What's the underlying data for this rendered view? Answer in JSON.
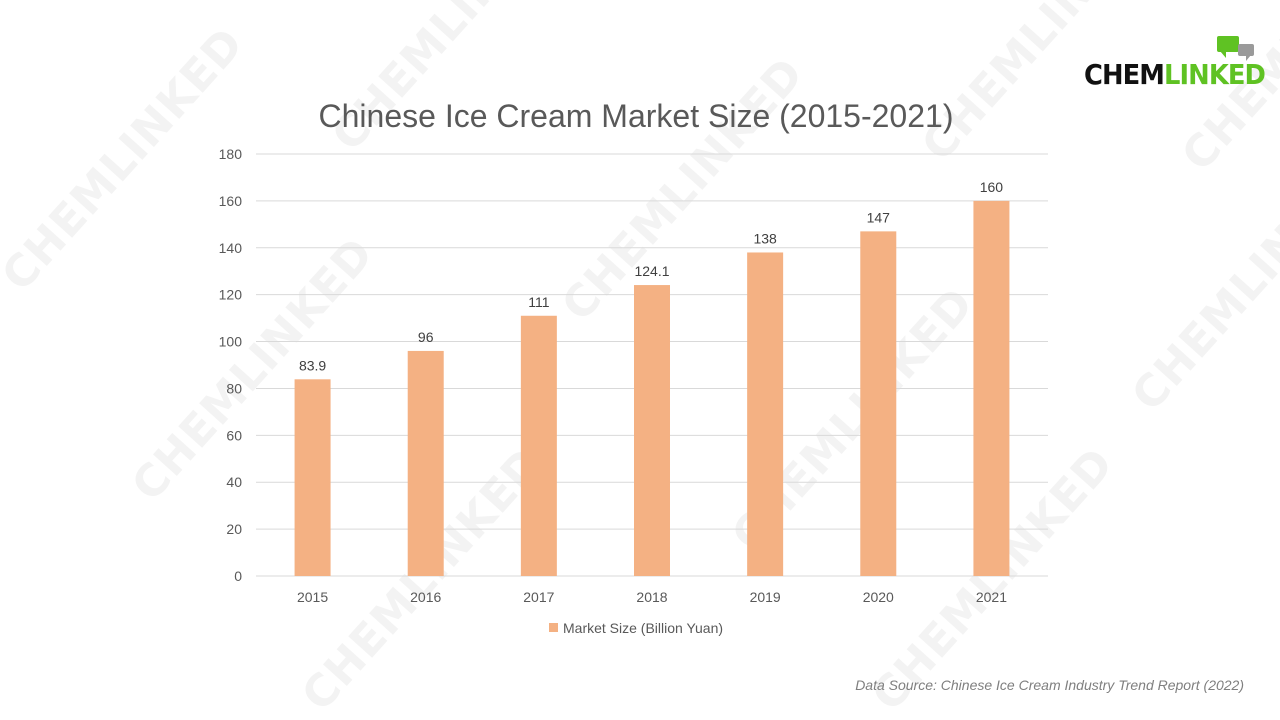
{
  "logo": {
    "part1": "CHEM",
    "part2": "LINKED"
  },
  "watermark_text": "CHEMLINKED",
  "colors": {
    "bar": "#f4b183",
    "grid": "#d9d9d9",
    "text": "#595959",
    "logo_green": "#5fc223"
  },
  "chart_data": {
    "type": "bar",
    "title": "Chinese Ice Cream Market Size (2015-2021)",
    "categories": [
      "2015",
      "2016",
      "2017",
      "2018",
      "2019",
      "2020",
      "2021"
    ],
    "series": [
      {
        "name": "Market Size (Billion Yuan)",
        "values": [
          83.9,
          96,
          111,
          124.1,
          138,
          147,
          160
        ],
        "data_labels": [
          "83.9",
          "96",
          "111",
          "124.1",
          "138",
          "147",
          "160"
        ]
      }
    ],
    "yticks": [
      "0",
      "20",
      "40",
      "60",
      "80",
      "100",
      "120",
      "140",
      "160",
      "180"
    ],
    "ylim": [
      0,
      180
    ],
    "grid": true,
    "legend_position": "bottom",
    "xlabel": "",
    "ylabel": ""
  },
  "source_note": "Data Source: Chinese Ice Cream Industry Trend Report (2022)"
}
